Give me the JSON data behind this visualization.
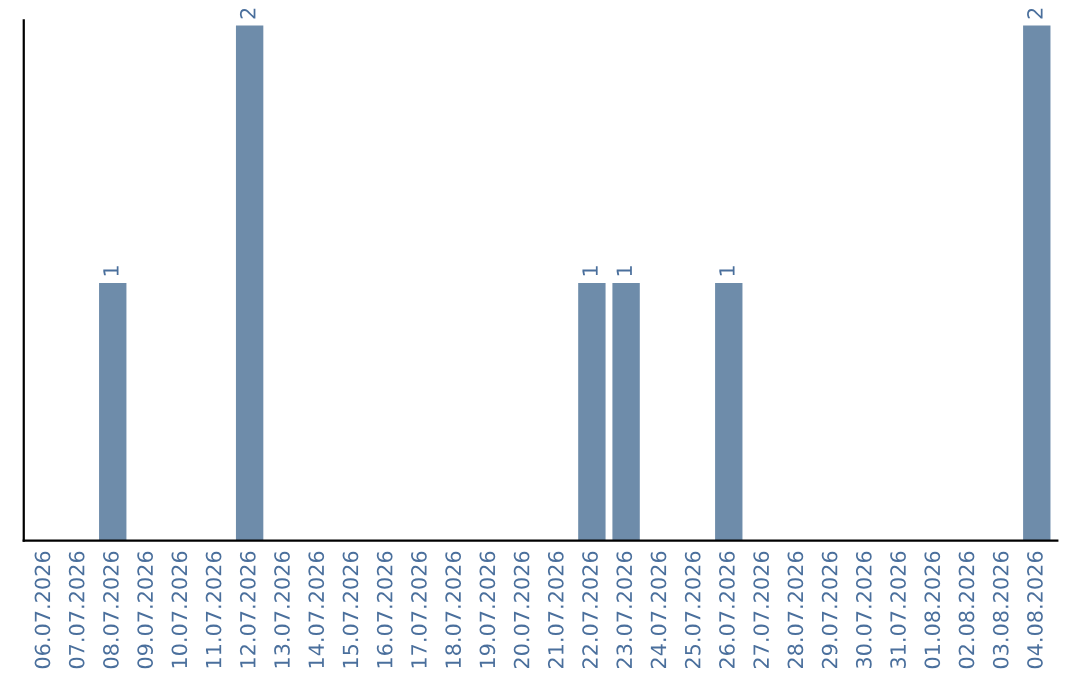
{
  "chart_data": {
    "type": "bar",
    "categories": [
      "06.07.2026",
      "07.07.2026",
      "08.07.2026",
      "09.07.2026",
      "10.07.2026",
      "11.07.2026",
      "12.07.2026",
      "13.07.2026",
      "14.07.2026",
      "15.07.2026",
      "16.07.2026",
      "17.07.2026",
      "18.07.2026",
      "19.07.2026",
      "20.07.2026",
      "21.07.2026",
      "22.07.2026",
      "23.07.2026",
      "24.07.2026",
      "25.07.2026",
      "26.07.2026",
      "27.07.2026",
      "28.07.2026",
      "29.07.2026",
      "30.07.2026",
      "31.07.2026",
      "01.08.2026",
      "02.08.2026",
      "03.08.2026",
      "04.08.2026"
    ],
    "values": [
      0,
      0,
      1,
      0,
      0,
      0,
      2,
      0,
      0,
      0,
      0,
      0,
      0,
      0,
      0,
      0,
      1,
      1,
      0,
      0,
      1,
      0,
      0,
      0,
      0,
      0,
      0,
      0,
      0,
      2
    ],
    "value_labels": [
      null,
      null,
      "1",
      null,
      null,
      null,
      "2",
      null,
      null,
      null,
      null,
      null,
      null,
      null,
      null,
      null,
      "1",
      "1",
      null,
      null,
      "1",
      null,
      null,
      null,
      null,
      null,
      null,
      null,
      null,
      "2"
    ],
    "color": "#6e8caa",
    "tick_labels": "x",
    "grid": false,
    "legend": false
  }
}
